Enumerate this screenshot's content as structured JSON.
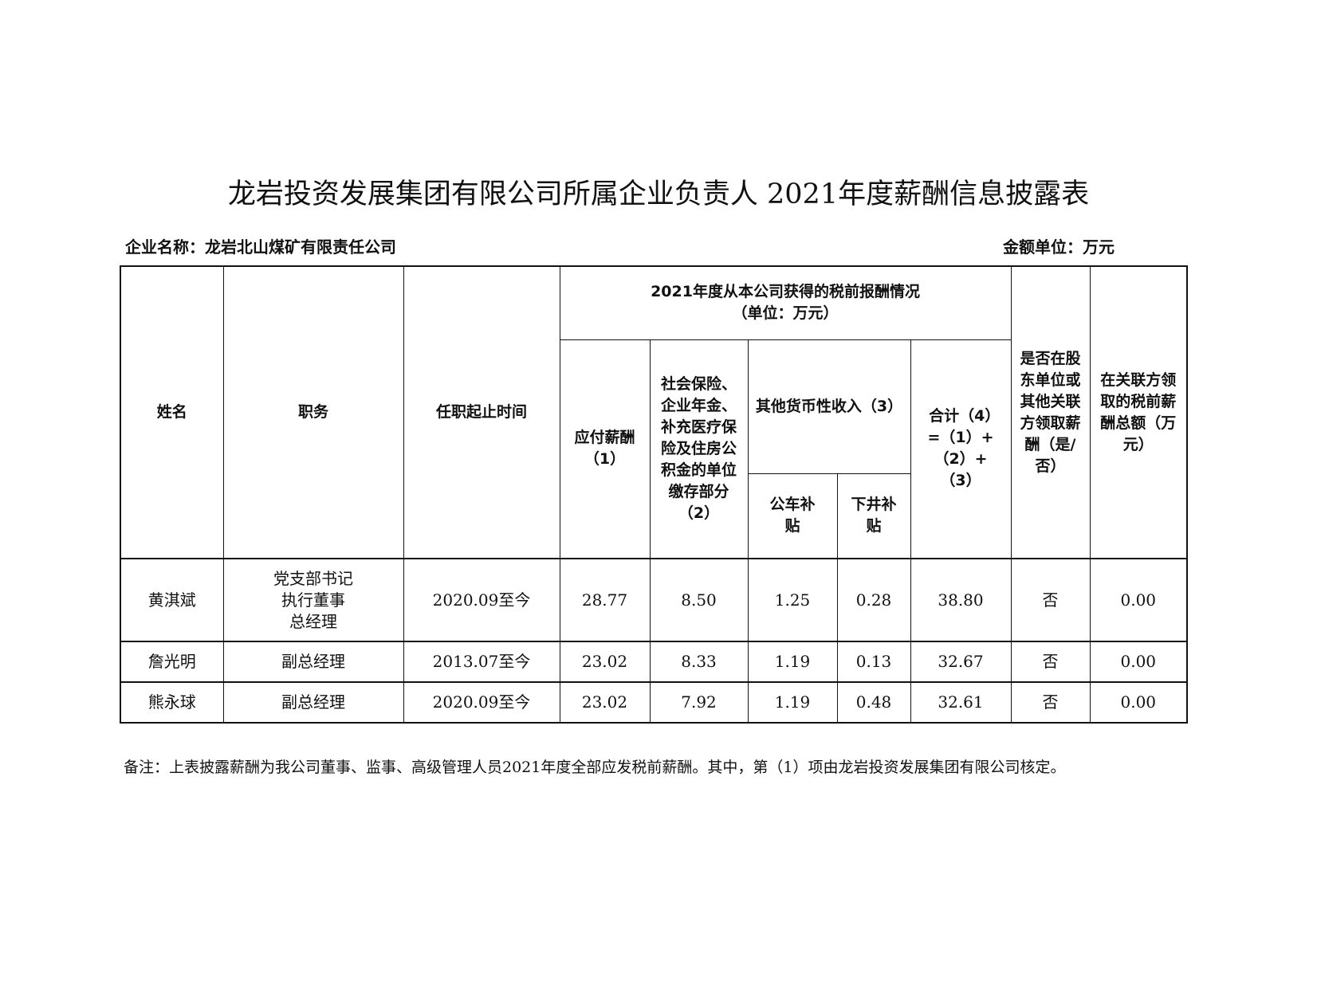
{
  "title": "龙岩投资发展集团有限公司所属企业负责人 2021年度薪酬信息披露表",
  "company_label": "企业名称：龙岩北山煤矿有限责任公司",
  "unit_label": "金额单位：万元",
  "headers": {
    "name": "姓名",
    "position": "职务",
    "tenure": "任职起止时间",
    "group": "2021年度从本公司获得的税前报酬情况",
    "group_unit": "（单位：万元）",
    "salary": "应付薪酬（1）",
    "insurance": "社会保险、企业年金、补充医疗保险及住房公积金的单位缴存部分（2）",
    "other": "其他货币性收入（3）",
    "car": "公车补贴",
    "mine": "下井补贴",
    "total": "合计（4）=（1）+（2）+（3）",
    "related": "是否在股东单位或其他关联方领取薪酬（是/否）",
    "related_amount": "在关联方领取的税前薪酬总额（万元）"
  },
  "rows": [
    {
      "name": "黄淇斌",
      "position": [
        "党支部书记",
        "执行董事",
        "总经理"
      ],
      "tenure": "2020.09至今",
      "salary": "28.77",
      "insurance": "8.50",
      "car": "1.25",
      "mine": "0.28",
      "total": "38.80",
      "related": "否",
      "related_amount": "0.00"
    },
    {
      "name": "詹光明",
      "position": [
        "副总经理"
      ],
      "tenure": "2013.07至今",
      "salary": "23.02",
      "insurance": "8.33",
      "car": "1.19",
      "mine": "0.13",
      "total": "32.67",
      "related": "否",
      "related_amount": "0.00"
    },
    {
      "name": "熊永球",
      "position": [
        "副总经理"
      ],
      "tenure": "2020.09至今",
      "salary": "23.02",
      "insurance": "7.92",
      "car": "1.19",
      "mine": "0.48",
      "total": "32.61",
      "related": "否",
      "related_amount": "0.00"
    }
  ],
  "note": "备注：上表披露薪酬为我公司董事、监事、高级管理人员2021年度全部应发税前薪酬。其中，第（1）项由龙岩投资发展集团有限公司核定。"
}
